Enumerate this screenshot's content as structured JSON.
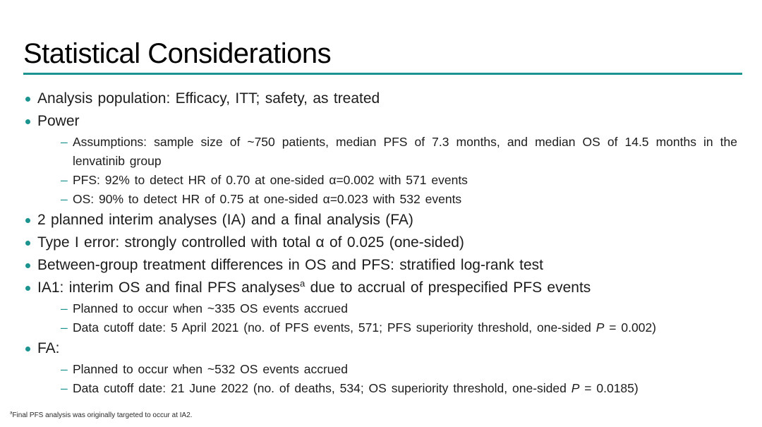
{
  "slide": {
    "title": "Statistical Considerations",
    "accent_color": "#1b938f",
    "dash_marker": "–"
  },
  "bullets": {
    "b1": "Analysis population: Efficacy, ITT; safety, as treated",
    "b2": "Power",
    "b2_sub1": "Assumptions: sample size of ~750 patients, median PFS of 7.3 months, and median OS of 14.5 months in the lenvatinib group",
    "b2_sub2": "PFS: 92% to detect HR of 0.70 at one-sided α=0.002 with 571 events",
    "b2_sub3": "OS: 90% to detect HR of 0.75 at one-sided α=0.023 with 532 events",
    "b3": "2 planned interim analyses (IA) and a final analysis (FA)",
    "b4": "Type I error: strongly controlled with total α of 0.025 (one-sided)",
    "b5": "Between-group treatment differences in OS and PFS: stratified log-rank test",
    "b6_pre": "IA1: interim OS and final PFS analyses",
    "b6_sup": "a",
    "b6_post": " due to accrual of prespecified PFS events",
    "b6_sub1": "Planned to occur when ~335 OS events accrued",
    "b6_sub2_pre": "Data cutoff date: 5 April 2021 (no. of PFS events, 571; PFS superiority threshold, one-sided ",
    "b6_sub2_p": "P",
    "b6_sub2_post": " = 0.002)",
    "b7": "FA:",
    "b7_sub1": "Planned to occur when ~532 OS events accrued",
    "b7_sub2_pre": "Data cutoff date: 21 June 2022 (no. of deaths, 534; OS superiority threshold, one-sided ",
    "b7_sub2_p": "P",
    "b7_sub2_post": " = 0.0185)"
  },
  "footnote": {
    "marker": "a",
    "text": "Final PFS analysis was originally targeted to occur at IA2."
  }
}
